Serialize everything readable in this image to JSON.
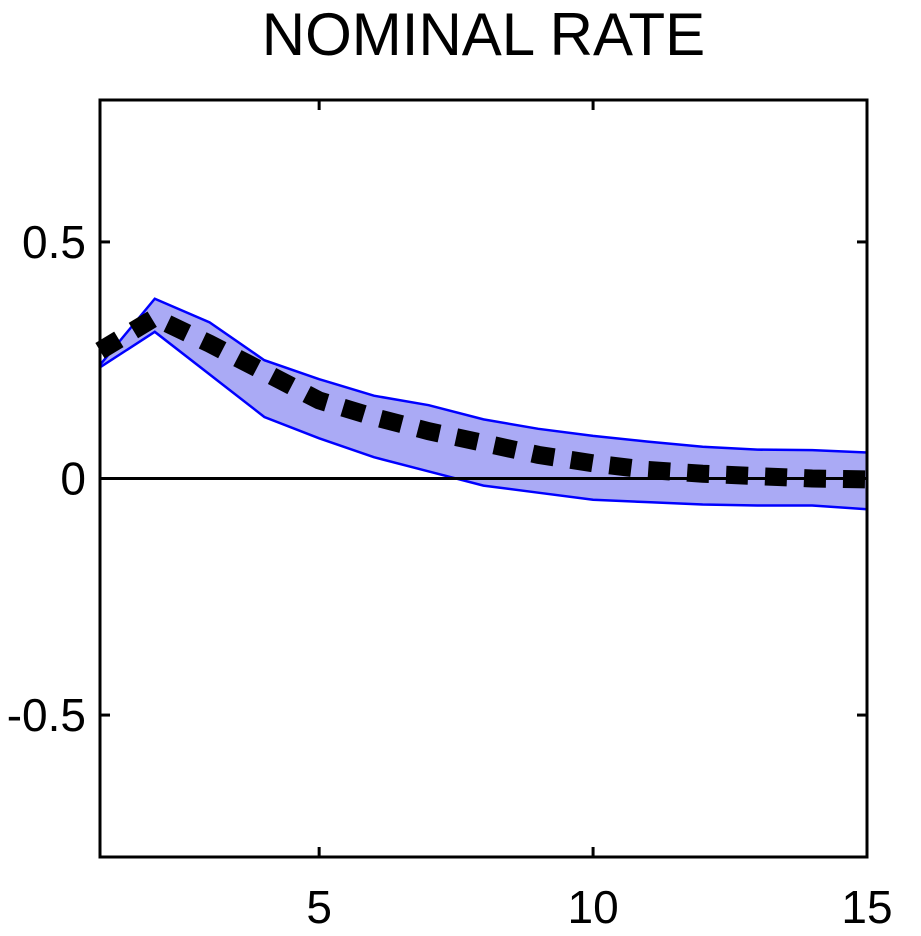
{
  "chart_data": {
    "type": "area",
    "title": "NOMINAL RATE",
    "xlabel": "",
    "ylabel": "",
    "xlim": [
      1,
      15
    ],
    "ylim": [
      -0.8,
      0.8
    ],
    "xticks": [
      5,
      10,
      15
    ],
    "yticks": [
      0.5,
      0,
      -0.5
    ],
    "xtick_labels": [
      "5",
      "10",
      "15"
    ],
    "ytick_labels": [
      "0.5",
      "0",
      "-0.5"
    ],
    "grid": false,
    "x": [
      1,
      2,
      3,
      4,
      5,
      6,
      7,
      8,
      9,
      10,
      11,
      12,
      13,
      14,
      15
    ],
    "band": {
      "upper": [
        0.24,
        0.38,
        0.33,
        0.25,
        0.21,
        0.175,
        0.155,
        0.125,
        0.105,
        0.09,
        0.078,
        0.067,
        0.061,
        0.06,
        0.055
      ],
      "lower": [
        0.235,
        0.31,
        0.22,
        0.13,
        0.085,
        0.045,
        0.015,
        -0.015,
        -0.03,
        -0.045,
        -0.05,
        -0.055,
        -0.057,
        -0.057,
        -0.065
      ],
      "fill_color": "#aaaaf5",
      "edge_color": "#0000ff"
    },
    "series": [
      {
        "values": [
          0.27,
          0.34,
          0.285,
          0.225,
          0.165,
          0.13,
          0.1,
          0.075,
          0.05,
          0.032,
          0.018,
          0.01,
          0.005,
          0.0,
          -0.002
        ],
        "style": "dotted",
        "color": "#000000"
      }
    ],
    "reference_line": {
      "y": 0,
      "color": "#000000"
    }
  }
}
